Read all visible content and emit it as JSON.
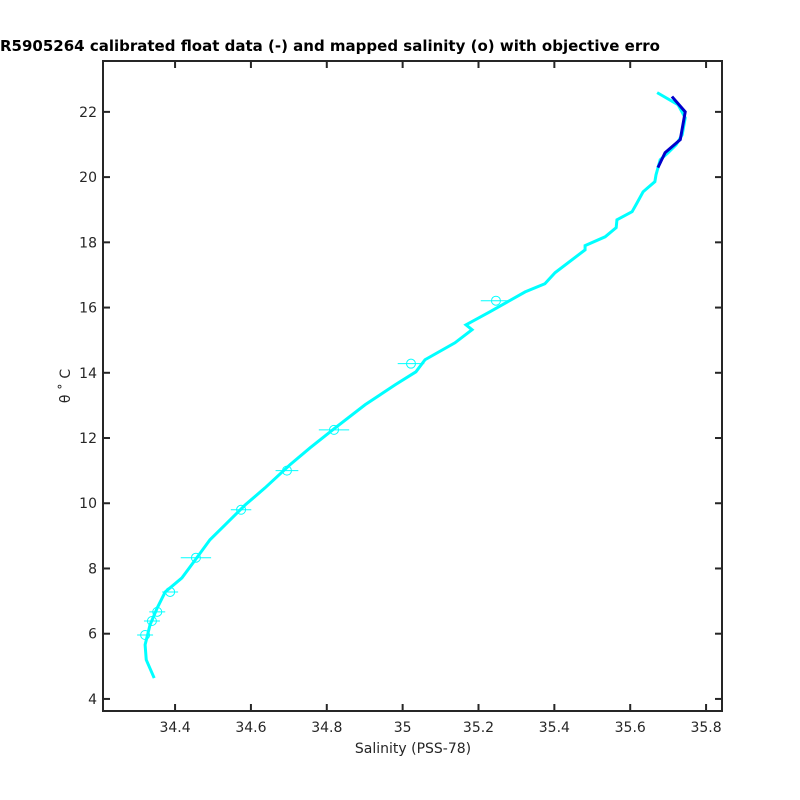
{
  "chart_data": {
    "type": "line",
    "title": "R5905264 calibrated float data (-) and mapped salinity (o) with objective erro",
    "x_label": "Salinity (PSS-78)",
    "y_label": "θ ˚ C",
    "xlim": [
      34.21,
      35.842
    ],
    "ylim": [
      3.63,
      23.56
    ],
    "xticks": [
      34.4,
      34.6,
      34.8,
      35,
      35.2,
      35.4,
      35.6,
      35.8
    ],
    "yticks": [
      4,
      6,
      8,
      10,
      12,
      14,
      16,
      18,
      20,
      22
    ],
    "series": [
      {
        "color": "#00ffff",
        "x": [
          34.345,
          34.324,
          34.321,
          34.334,
          34.353,
          34.374,
          34.418,
          34.453,
          34.492,
          34.532,
          34.585,
          34.637,
          34.703,
          34.756,
          34.822,
          34.901,
          34.98,
          35.035,
          35.059,
          35.138,
          35.183,
          35.167,
          35.23,
          35.323,
          35.375,
          35.402,
          35.481,
          35.481,
          35.534,
          35.563,
          35.565,
          35.605,
          35.618,
          35.634,
          35.665,
          35.668,
          35.679,
          35.7,
          35.721,
          35.737,
          35.745,
          35.726,
          35.671
        ],
        "y": [
          4.64,
          5.2,
          5.66,
          6.27,
          6.79,
          7.28,
          7.71,
          8.26,
          8.88,
          9.34,
          9.95,
          10.47,
          11.18,
          11.7,
          12.31,
          13.02,
          13.63,
          14.03,
          14.4,
          14.92,
          15.32,
          15.47,
          15.87,
          16.48,
          16.73,
          17.07,
          17.77,
          17.9,
          18.17,
          18.45,
          18.69,
          18.94,
          19.21,
          19.55,
          19.86,
          20.07,
          20.53,
          20.75,
          20.99,
          21.3,
          21.82,
          22.22,
          22.59
        ]
      },
      {
        "color": "#0000cc",
        "x": [
          35.71,
          35.745,
          35.732,
          35.692,
          35.673
        ],
        "y": [
          22.47,
          22.0,
          21.15,
          20.75,
          20.29
        ]
      }
    ],
    "mapped": {
      "color": "#00ffff",
      "x": [
        34.321,
        34.339,
        34.353,
        34.387,
        34.455,
        34.574,
        34.695,
        34.819,
        35.022,
        35.246
      ],
      "y": [
        5.96,
        6.39,
        6.67,
        7.28,
        8.33,
        9.8,
        11.0,
        12.25,
        14.28,
        16.21
      ],
      "xerr": [
        0.021,
        0.021,
        0.021,
        0.021,
        0.04,
        0.027,
        0.03,
        0.04,
        0.035,
        0.04
      ]
    }
  }
}
